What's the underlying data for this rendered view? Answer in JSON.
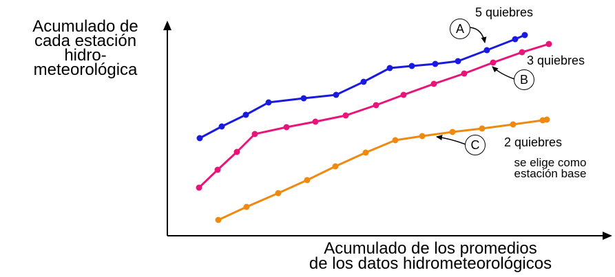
{
  "chart_data": {
    "type": "line",
    "ylabel_lines": [
      "Acumulado de",
      "cada estación",
      "hidro-",
      "meteorológica"
    ],
    "xlabel_lines": [
      "Acumulado de los promedios",
      "de los datos hidrometeorológicos"
    ],
    "grid": false,
    "legend": "none",
    "series": [
      {
        "marker": "A",
        "color": "#1a1adf",
        "points": [
          [
            290,
            201
          ],
          [
            322,
            184
          ],
          [
            357,
            167
          ],
          [
            390,
            149
          ],
          [
            441,
            143
          ],
          [
            488,
            138
          ],
          [
            528,
            119
          ],
          [
            566,
            99
          ],
          [
            598,
            96
          ],
          [
            632,
            93
          ],
          [
            665,
            89
          ],
          [
            707,
            73
          ],
          [
            748,
            57
          ],
          [
            762,
            51
          ]
        ]
      },
      {
        "marker": "B",
        "color": "#e8147a",
        "points": [
          [
            289,
            273
          ],
          [
            316,
            247
          ],
          [
            344,
            221
          ],
          [
            370,
            195
          ],
          [
            416,
            185
          ],
          [
            458,
            177
          ],
          [
            502,
            168
          ],
          [
            546,
            153
          ],
          [
            586,
            138
          ],
          [
            630,
            122
          ],
          [
            674,
            107
          ],
          [
            716,
            91
          ],
          [
            758,
            76
          ],
          [
            797,
            64
          ]
        ]
      },
      {
        "marker": "C",
        "color": "#ee8a10",
        "points": [
          [
            317,
            320
          ],
          [
            358,
            301
          ],
          [
            404,
            281
          ],
          [
            446,
            262
          ],
          [
            487,
            242
          ],
          [
            531,
            222
          ],
          [
            574,
            204
          ],
          [
            613,
            198
          ],
          [
            657,
            192
          ],
          [
            700,
            187
          ],
          [
            745,
            181
          ],
          [
            788,
            175
          ],
          [
            794,
            174
          ]
        ]
      }
    ],
    "annotations": {
      "a_label": "A",
      "a_text": "5 quiebres",
      "b_label": "B",
      "b_text": "3 quiebres",
      "c_label": "C",
      "c_text": "2 quiebres",
      "c_note_lines": [
        "se elige como",
        "estación base"
      ]
    }
  }
}
